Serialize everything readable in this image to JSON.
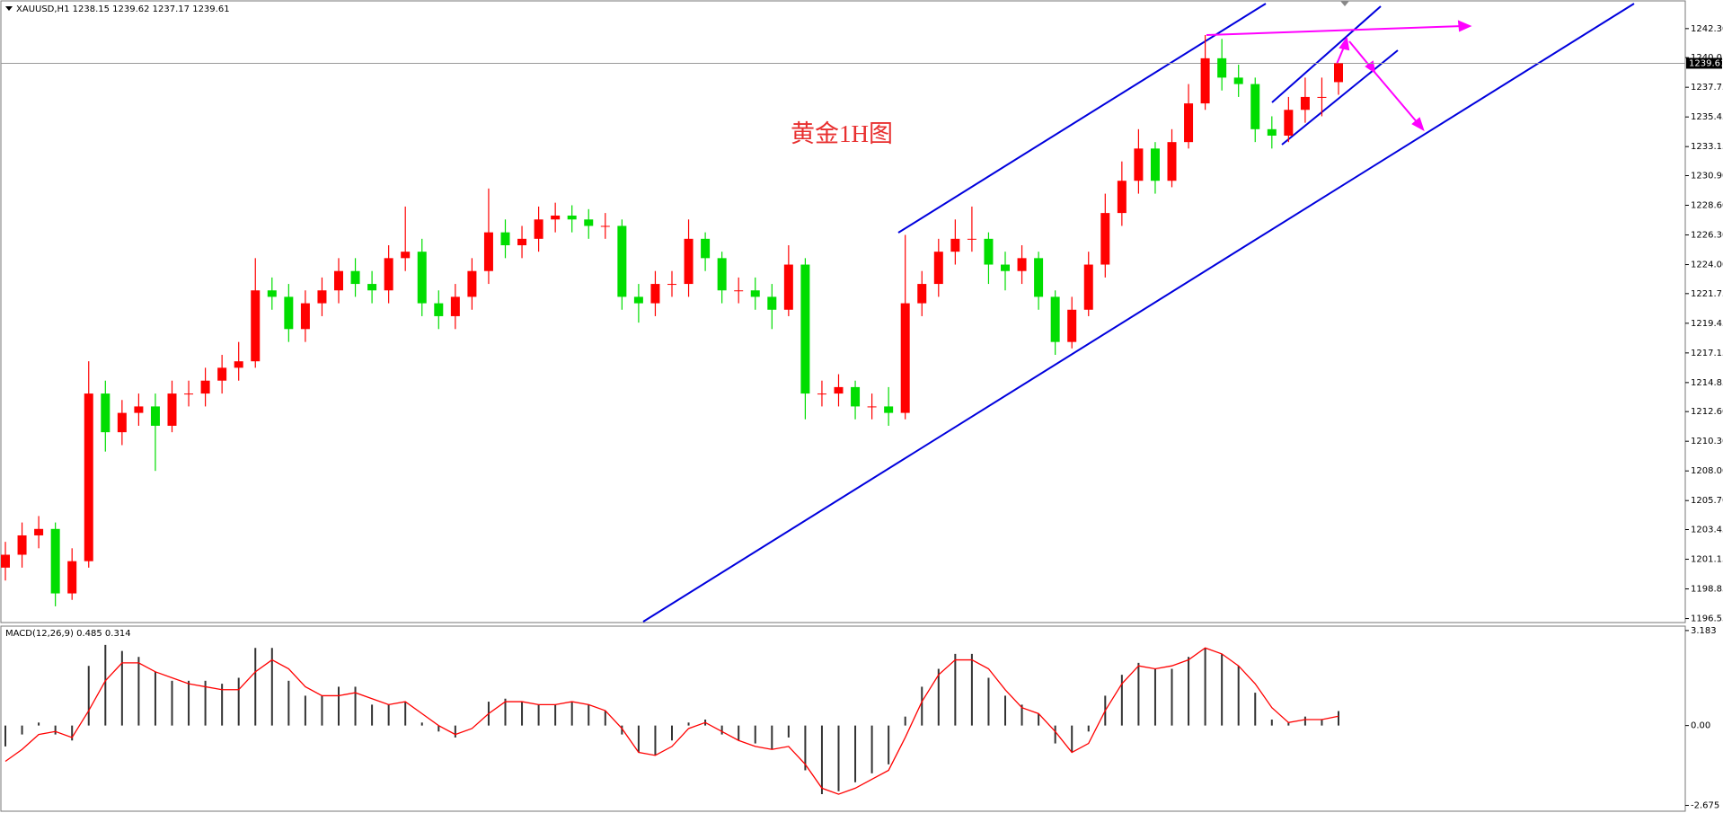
{
  "chart_data": [
    {
      "type": "candlestick",
      "title": "XAUUSD,H1 1238.15 1239.62 1237.17 1239.61",
      "annotation": "黄金1H图",
      "up_color": "#ff0000",
      "down_color": "#00dd00",
      "last_price": 1239.61,
      "open": [
        1200.5,
        1201.5,
        1203,
        1203.5,
        1198.5,
        1201,
        1214,
        1211,
        1212.5,
        1213,
        1211.5,
        1214,
        1214,
        1215,
        1216,
        1216.5,
        1222,
        1221.5,
        1219,
        1221,
        1222,
        1223.5,
        1222.5,
        1222,
        1224.5,
        1225,
        1221,
        1220,
        1221.5,
        1223.5,
        1226.5,
        1225.5,
        1226,
        1227.5,
        1227.8,
        1227.5,
        1227,
        1227,
        1221.5,
        1221,
        1222.5,
        1222.5,
        1226,
        1224.5,
        1222,
        1222,
        1221.5,
        1220.5,
        1224,
        1214,
        1214,
        1214.5,
        1213,
        1213,
        1212.5,
        1221,
        1222.5,
        1225,
        1226,
        1226,
        1224,
        1223.5,
        1224.5,
        1221.5,
        1218,
        1220.5,
        1224,
        1228,
        1230.5,
        1233,
        1230.5,
        1233.5,
        1236.5,
        1240,
        1238.5,
        1238,
        1234.5,
        1234,
        1236,
        1237,
        1238.15
      ],
      "high": [
        1202.5,
        1204,
        1204.5,
        1204,
        1202,
        1216.5,
        1215,
        1213.5,
        1214,
        1214,
        1215,
        1215,
        1216,
        1217,
        1218,
        1224.5,
        1223,
        1222.5,
        1222,
        1223,
        1224.5,
        1224.5,
        1223.5,
        1225.5,
        1228.5,
        1226,
        1222,
        1222.5,
        1224.5,
        1229.9,
        1227.5,
        1227,
        1228.5,
        1228.8,
        1228.6,
        1228.3,
        1228,
        1227.5,
        1222.5,
        1223.5,
        1223.5,
        1227.5,
        1226.5,
        1225,
        1223,
        1223,
        1222.5,
        1225.5,
        1224.5,
        1215,
        1215.5,
        1215,
        1214,
        1214.5,
        1226.3,
        1223.5,
        1226,
        1227.5,
        1228.5,
        1226.5,
        1225,
        1225.5,
        1225,
        1222,
        1221.5,
        1225,
        1229.5,
        1232,
        1234.5,
        1233.5,
        1234.5,
        1238,
        1241.8,
        1241.5,
        1239.5,
        1238.5,
        1235.5,
        1237,
        1238.5,
        1238.5,
        1239.62
      ],
      "low": [
        1199.5,
        1200.5,
        1202,
        1197.5,
        1198,
        1200.5,
        1209.5,
        1210,
        1211.5,
        1208,
        1211,
        1213,
        1213,
        1214,
        1215,
        1216,
        1220.5,
        1218,
        1218,
        1220,
        1221,
        1221.5,
        1221,
        1221,
        1223.5,
        1220,
        1219,
        1219,
        1220.5,
        1222.5,
        1224.5,
        1224.5,
        1225,
        1226.5,
        1226.5,
        1226,
        1226,
        1220.5,
        1219.5,
        1220,
        1221.5,
        1221.5,
        1223.5,
        1221,
        1221,
        1220.5,
        1219,
        1220,
        1212,
        1213,
        1213,
        1212,
        1212,
        1211.5,
        1212,
        1220,
        1221.5,
        1224,
        1225,
        1222.5,
        1222,
        1222.5,
        1220.5,
        1217,
        1217.5,
        1220,
        1223,
        1227,
        1229.5,
        1229.5,
        1230,
        1233,
        1236,
        1237.5,
        1237,
        1233.5,
        1233,
        1233.5,
        1235,
        1235.5,
        1237.17
      ],
      "close": [
        1201.5,
        1203,
        1203.5,
        1198.5,
        1201,
        1214,
        1211,
        1212.5,
        1213,
        1211.5,
        1214,
        1214,
        1215,
        1216,
        1216.5,
        1222,
        1221.5,
        1219,
        1221,
        1222,
        1223.5,
        1222.5,
        1222,
        1224.5,
        1225,
        1221,
        1220,
        1221.5,
        1223.5,
        1226.5,
        1225.5,
        1226,
        1227.5,
        1227.8,
        1227.5,
        1227,
        1227,
        1221.5,
        1221,
        1222.5,
        1222.5,
        1226,
        1224.5,
        1222,
        1222,
        1221.5,
        1220.5,
        1224,
        1214,
        1214,
        1214.5,
        1213,
        1213,
        1212.5,
        1221,
        1222.5,
        1225,
        1226,
        1226,
        1224,
        1223.5,
        1224.5,
        1221.5,
        1218,
        1220.5,
        1224,
        1228,
        1230.5,
        1233,
        1230.5,
        1233.5,
        1236.5,
        1240,
        1238.5,
        1238,
        1234.5,
        1234,
        1236,
        1237,
        1237,
        1239.61
      ],
      "ylim": [
        1196.31,
        1244.24
      ],
      "yticks": [
        {
          "value": 1242.3,
          "label": "1242.30"
        },
        1240.05,
        1237.75,
        1235.45,
        1233.15,
        {
          "value": 1230.9,
          "label": "1230.90"
        },
        {
          "value": 1228.6,
          "label": "1228.60"
        },
        {
          "value": 1226.3,
          "label": "1226.30"
        },
        {
          "value": 1224,
          "label": "1224.00"
        },
        1221.75,
        1219.45,
        1217.15,
        1214.85,
        {
          "value": 1212.6,
          "label": "1212.60"
        },
        {
          "value": 1210.3,
          "label": "1210.30"
        },
        {
          "value": 1208,
          "label": "1208.00"
        },
        {
          "value": 1205.7,
          "label": "1205.70"
        },
        1203.45,
        1201.15,
        1198.85,
        1196.55
      ]
    },
    {
      "type": "macd",
      "title": "MACD(12,26,9) 0.485 0.314",
      "histogram_color": "#333333",
      "signal_color": "#ff0000",
      "histogram": [
        -0.7,
        -0.3,
        0.1,
        -0.3,
        -0.5,
        2,
        2.7,
        2.5,
        2.3,
        1.8,
        1.5,
        1.5,
        1.5,
        1.4,
        1.6,
        2.6,
        2.6,
        1.5,
        1,
        1,
        1.3,
        1.3,
        0.7,
        0.7,
        0.8,
        0.1,
        -0.2,
        -0.4,
        0,
        0.8,
        0.9,
        0.8,
        0.7,
        0.7,
        0.8,
        0.7,
        0.5,
        -0.3,
        -0.9,
        -1,
        -0.5,
        0.1,
        0.2,
        -0.3,
        -0.5,
        -0.6,
        -0.8,
        -0.4,
        -1.5,
        -2.3,
        -2.2,
        -1.9,
        -1.6,
        -1.3,
        0.3,
        1.3,
        1.9,
        2.4,
        2.4,
        1.6,
        1,
        0.7,
        0.4,
        -0.6,
        -0.9,
        -0.2,
        1,
        1.7,
        2.1,
        1.9,
        1.9,
        2.3,
        2.6,
        2.4,
        2,
        1.1,
        0.2,
        0.1,
        0.3,
        0.2,
        0.485
      ],
      "signal": [
        -1.2,
        -0.8,
        -0.3,
        -0.2,
        -0.4,
        0.5,
        1.5,
        2.1,
        2.1,
        1.8,
        1.6,
        1.4,
        1.3,
        1.2,
        1.2,
        1.8,
        2.2,
        1.9,
        1.3,
        1,
        1,
        1.1,
        0.9,
        0.7,
        0.8,
        0.4,
        0,
        -0.3,
        -0.1,
        0.4,
        0.8,
        0.8,
        0.7,
        0.7,
        0.8,
        0.7,
        0.5,
        -0.1,
        -0.9,
        -1,
        -0.7,
        -0.1,
        0.1,
        -0.2,
        -0.5,
        -0.7,
        -0.8,
        -0.7,
        -1.3,
        -2.1,
        -2.3,
        -2.1,
        -1.8,
        -1.5,
        -0.4,
        0.8,
        1.7,
        2.2,
        2.2,
        1.9,
        1.2,
        0.6,
        0.4,
        -0.2,
        -0.9,
        -0.6,
        0.5,
        1.4,
        2,
        1.9,
        2,
        2.2,
        2.6,
        2.4,
        2,
        1.4,
        0.6,
        0.1,
        0.2,
        0.2,
        0.314
      ],
      "ylim": [
        -2.87,
        3.3
      ],
      "yticks": [
        3.183,
        {
          "value": 0,
          "label": "0.00"
        },
        -2.675
      ]
    }
  ]
}
